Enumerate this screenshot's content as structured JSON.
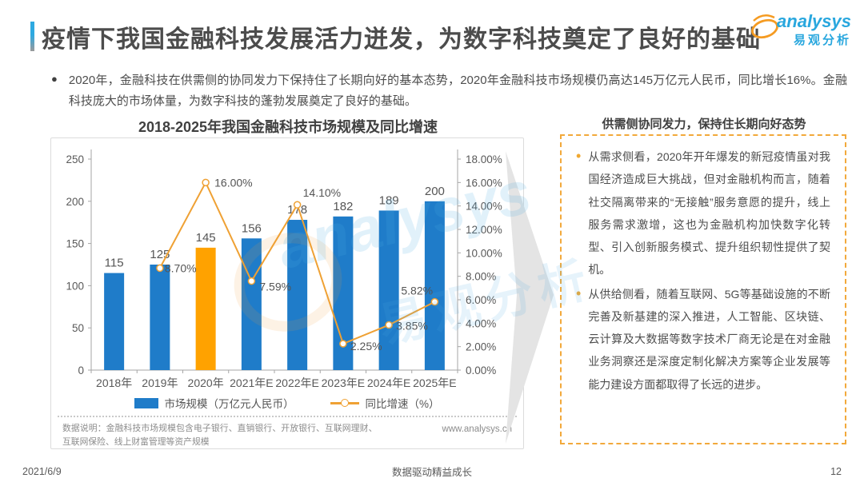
{
  "header": {
    "title": "疫情下我国金融科技发展活力迸发，为数字科技奠定了良好的基础",
    "logo": {
      "brand": "analysys",
      "brand_cn": "易观分析"
    }
  },
  "icons": {
    "summary_bullet": "●",
    "panel_bullet": "•"
  },
  "summary": {
    "text": "2020年，金融科技在供需侧的协同发力下保持住了长期向好的基本态势，2020年金融科技市场规模仍高达145万亿元人民币，同比增长16%。金融科技庞大的市场体量，为数字科技的蓬勃发展奠定了良好的基础。"
  },
  "chart": {
    "title": "2018-2025年我国金融科技市场规模及同比增速",
    "footnote": "数据说明：金融科技市场规模包含电子银行、直销银行、开放银行、互联网理财、互联网保险、线上财富管理等资产规模",
    "source_url": "www.analysys.cn"
  },
  "chart_data": {
    "type": "bar",
    "title": "2018-2025年我国金融科技市场规模及同比增速",
    "categories": [
      "2018年",
      "2019年",
      "2020年",
      "2021年E",
      "2022年E",
      "2023年E",
      "2024年E",
      "2025年E"
    ],
    "series": [
      {
        "name": "市场规模（万亿元人民币）",
        "type": "bar",
        "values": [
          115,
          125,
          145,
          156,
          178,
          182,
          189,
          200
        ],
        "color": "#1f7cc9",
        "highlight_index": 2,
        "highlight_color": "#ffa200"
      },
      {
        "name": "同比增速（%）",
        "type": "line",
        "values": [
          null,
          8.7,
          16.0,
          7.59,
          14.1,
          2.25,
          3.85,
          5.82
        ],
        "value_labels": [
          "8.70%",
          "16.00%",
          "7.59%",
          "14.10%",
          "2.25%",
          "3.85%",
          "5.82%"
        ],
        "color": "#efa134"
      }
    ],
    "left_axis": {
      "min": 0,
      "max": 250,
      "step": 50
    },
    "right_axis": {
      "min": 0,
      "max": 18,
      "step": 2,
      "suffix": "%"
    },
    "grid": false,
    "legend_position": "bottom"
  },
  "right_panel": {
    "title": "供需侧协同发力，保持住长期向好态势",
    "bullets": [
      "从需求侧看，2020年开年爆发的新冠疫情虽对我国经济造成巨大挑战，但对金融机构而言，随着社交隔离带来的“无接触”服务意愿的提升，线上服务需求激增，这也为金融机构加快数字化转型、引入创新服务模式、提升组织韧性提供了契机。",
      "从供给侧看，随着互联网、5G等基础设施的不断完善及新基建的深入推进，人工智能、区块链、云计算及大数据等数字技术厂商无论是在对金融业务洞察还是深度定制化解决方案等企业发展等能力建设方面都取得了长远的进步。"
    ]
  },
  "watermark": {
    "brand": "analysys",
    "brand_cn": "易观分析"
  },
  "footer": {
    "date": "2021/6/9",
    "slogan": "数据驱动精益成长",
    "page": "12"
  }
}
